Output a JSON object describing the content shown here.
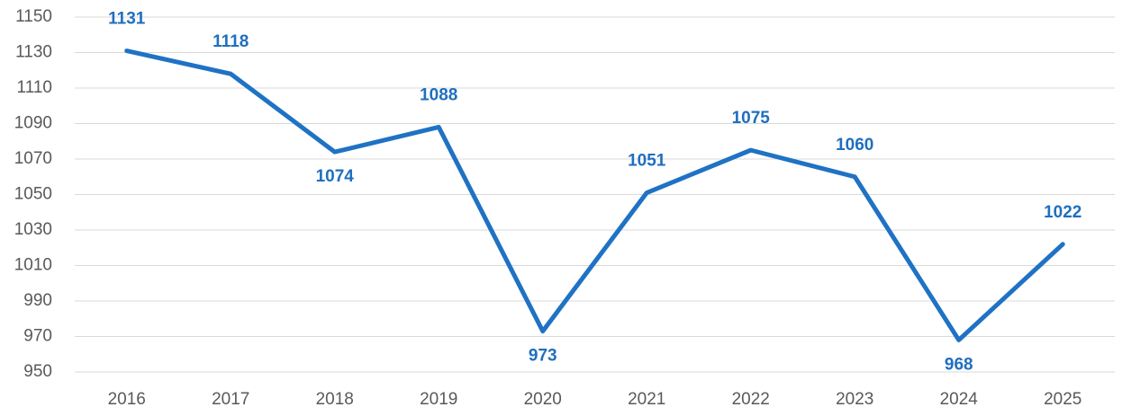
{
  "chart_data": {
    "type": "line",
    "categories": [
      "2016",
      "2017",
      "2018",
      "2019",
      "2020",
      "2021",
      "2022",
      "2023",
      "2024",
      "2025"
    ],
    "values": [
      1131,
      1118,
      1074,
      1088,
      973,
      1051,
      1075,
      1060,
      968,
      1022
    ],
    "color": "#1f72c4",
    "ylim": [
      950,
      1150
    ],
    "yticks": [
      950,
      970,
      990,
      1010,
      1030,
      1050,
      1070,
      1090,
      1110,
      1130,
      1150
    ],
    "grid": true
  }
}
